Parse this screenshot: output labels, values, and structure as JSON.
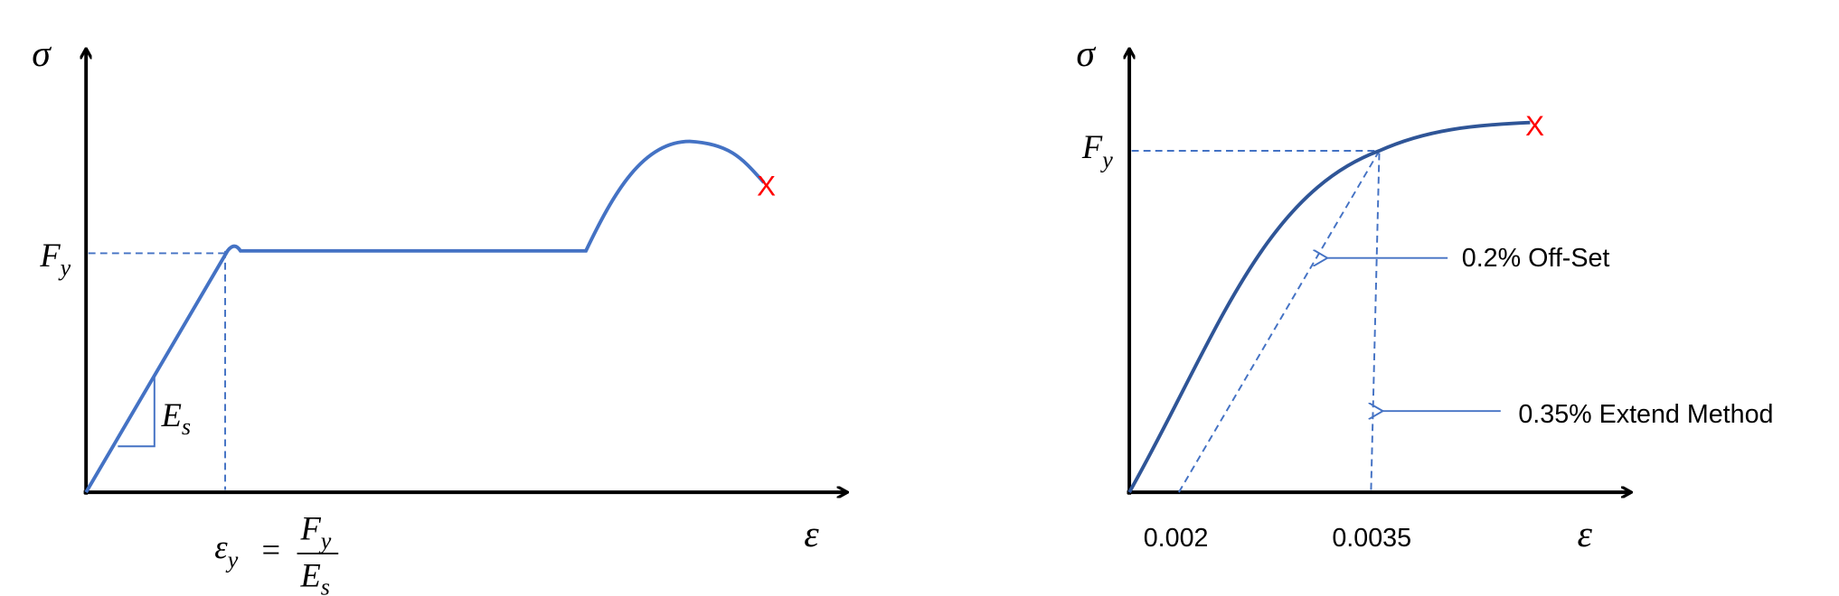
{
  "left_diagram": {
    "y_axis_label": "σ",
    "x_axis_label": "ε",
    "yield_label": {
      "symbol": "F",
      "subscript": "y"
    },
    "modulus_label": {
      "symbol": "E",
      "subscript": "s"
    },
    "yield_strain_label": {
      "lhs_symbol": "ε",
      "lhs_subscript": "y",
      "equals": "=",
      "numerator_symbol": "F",
      "numerator_subscript": "y",
      "denominator_symbol": "E",
      "denominator_subscript": "s"
    },
    "fracture_marker": "X"
  },
  "right_diagram": {
    "y_axis_label": "σ",
    "x_axis_label": "ε",
    "yield_label": {
      "symbol": "F",
      "subscript": "y"
    },
    "offset_label": "0.2% Off-Set",
    "extend_label": "0.35% Extend Method",
    "x_tick_labels": [
      "0.002",
      "0.0035"
    ],
    "fracture_marker": "X"
  }
}
